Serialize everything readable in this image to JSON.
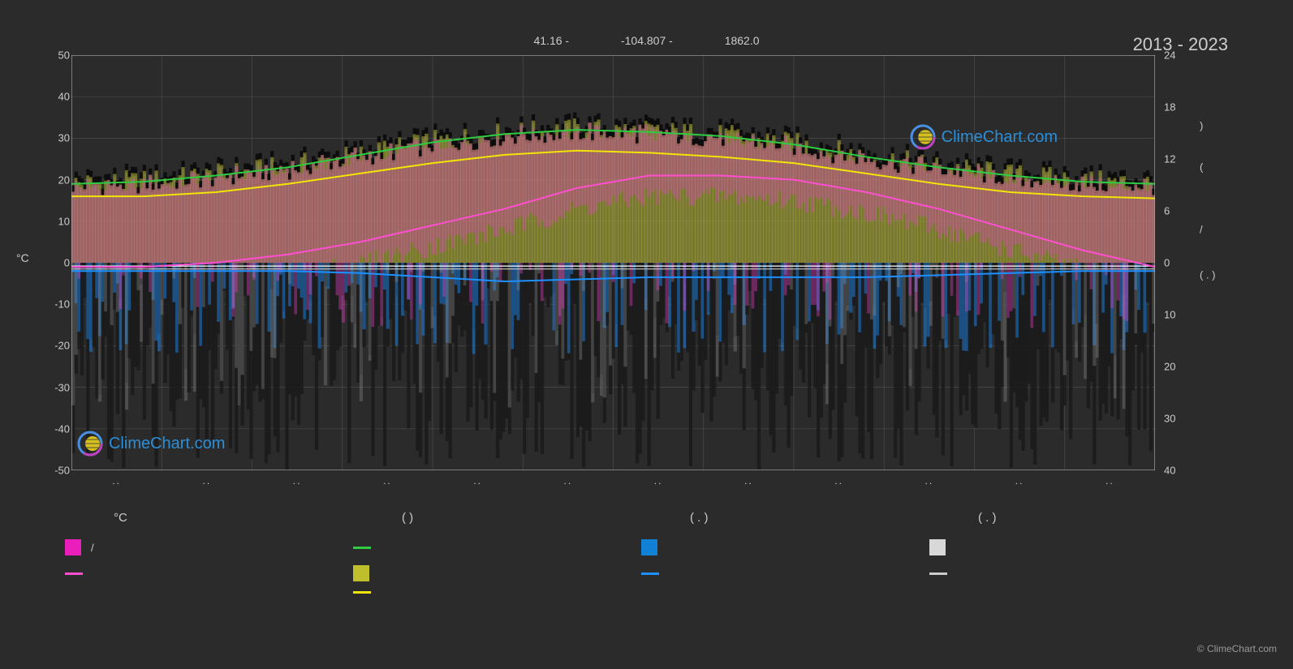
{
  "header": {
    "lat": "41.16 -",
    "lon": "-104.807 -",
    "elev": "1862.0",
    "year_range": "2013 - 2023"
  },
  "chart": {
    "background_color": "#2b2b2b",
    "grid_color": "#888888",
    "grid_opacity": 0.35,
    "border_color": "#cccccc",
    "left_axis": {
      "label": "°C",
      "min": -50,
      "max": 50,
      "ticks": [
        50,
        40,
        30,
        20,
        10,
        0,
        -10,
        -20,
        -30,
        -40,
        -50
      ]
    },
    "right_axis": {
      "ticks": [
        24,
        18,
        12,
        6,
        0,
        10,
        20,
        30,
        40
      ],
      "secondary_labels": [
        ")",
        "(",
        "/",
        "( . )"
      ]
    },
    "x_axis": {
      "months": [
        "..",
        "..",
        "..",
        "..",
        "..",
        "..",
        "..",
        "..",
        "..",
        "..",
        "..",
        ".."
      ]
    },
    "lines": {
      "green": {
        "color": "#2ecc40",
        "width": 2,
        "y": [
          19,
          19.5,
          21,
          23,
          26,
          29,
          31,
          32,
          31.5,
          30.5,
          28.5,
          25.5,
          23,
          21,
          19.5,
          19
        ]
      },
      "yellow": {
        "color": "#f1e507",
        "width": 2,
        "y": [
          16,
          16,
          17,
          19,
          21.5,
          24,
          26,
          27,
          26.5,
          25.5,
          24,
          21.5,
          19,
          17,
          16,
          15.5
        ]
      },
      "magenta": {
        "color": "#ff4fd1",
        "width": 2,
        "y": [
          -1,
          -1,
          0,
          2,
          5,
          9,
          13,
          18,
          21,
          21,
          20,
          17,
          13,
          8,
          3,
          -1
        ]
      },
      "white": {
        "color": "#ffffff",
        "width": 1.2,
        "y": [
          -0.8,
          -0.8,
          -0.8,
          -0.8,
          -0.8,
          -0.8,
          -0.8,
          -0.8,
          -0.8,
          -0.8,
          -0.8,
          -0.8,
          -0.8,
          -0.8,
          -0.8,
          -0.8
        ]
      },
      "blue": {
        "color": "#1e90ff",
        "width": 2,
        "y": [
          -2,
          -2,
          -2,
          -2,
          -2.5,
          -3.5,
          -4.5,
          -4,
          -3.5,
          -3.5,
          -3.5,
          -3.5,
          -3,
          -2.5,
          -2,
          -2
        ]
      },
      "grey": {
        "color": "#cccccc",
        "width": 1.2,
        "y": [
          -1.5,
          -1.5,
          -1.5,
          -1.5,
          -1.5,
          -1.5,
          -1.5,
          -1.5,
          -1.5,
          -1.5,
          -1.5,
          -1.5,
          -1.5,
          -1.5,
          -1.5,
          -1.5
        ]
      }
    },
    "bars": {
      "yellow_fill": "#b8b83a",
      "yellow_opacity": 0.55,
      "magenta_fill": "#e040c0",
      "magenta_opacity": 0.35,
      "dark_below": "#1a1a1a",
      "blue_fill": "#1e90ff",
      "blue_opacity": 0.45,
      "grey_fill": "#909090",
      "grey_opacity": 0.35
    }
  },
  "legend": {
    "headers": [
      "°C",
      "(          )",
      "( . )",
      "( . )"
    ],
    "row1": [
      {
        "type": "square",
        "color": "#e91ebb",
        "label": "/"
      },
      {
        "type": "line",
        "color": "#2ecc40",
        "label": ""
      },
      {
        "type": "square",
        "color": "#1181d6",
        "label": ""
      },
      {
        "type": "square",
        "color": "#d8d8d8",
        "label": ""
      }
    ],
    "row2": [
      {
        "type": "line",
        "color": "#ff4fd1",
        "label": ""
      },
      {
        "type": "square",
        "color": "#bfbf2e",
        "label": ""
      },
      {
        "type": "line",
        "color": "#1e90ff",
        "label": ""
      },
      {
        "type": "line",
        "color": "#cccccc",
        "label": ""
      }
    ],
    "row3": [
      {
        "type": "none",
        "label": ""
      },
      {
        "type": "line",
        "color": "#f1e507",
        "label": ""
      },
      {
        "type": "none",
        "label": ""
      },
      {
        "type": "none",
        "label": ""
      }
    ]
  },
  "watermark": "ClimeChart.com",
  "watermark_colors": {
    "text": "#2a8fd8",
    "ring_outer": "#4a90e2",
    "ring_inner": "#c040c0",
    "sphere": "#d4c020"
  },
  "copyright": "© ClimeChart.com"
}
